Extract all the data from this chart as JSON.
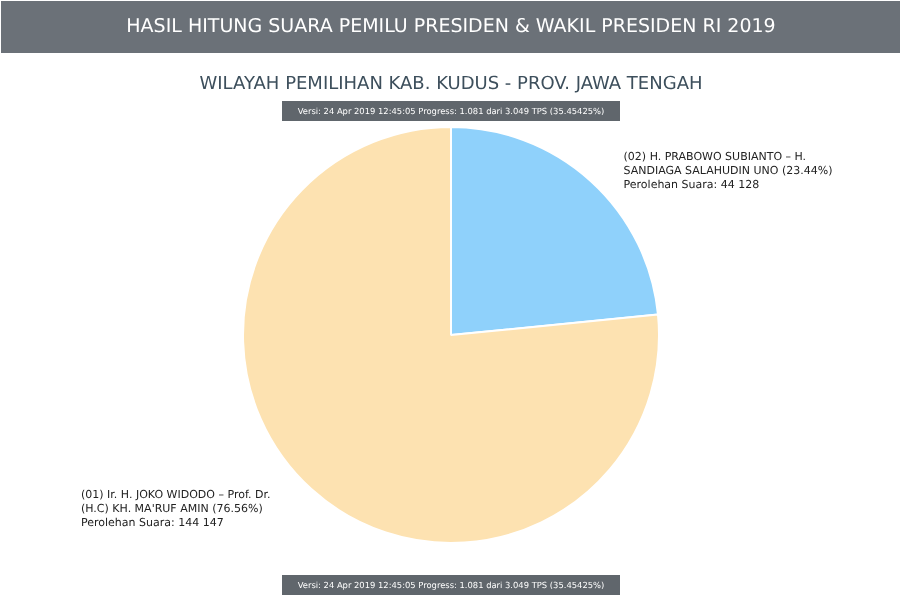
{
  "chart_data": {
    "type": "pie",
    "title": "HASIL HITUNG SUARA PEMILU PRESIDEN & WAKIL PRESIDEN RI 2019",
    "subtitle": "WILAYAH PEMILIHAN KAB. KUDUS - PROV. JAWA TENGAH",
    "categories": [
      "(02) H. PRABOWO SUBIANTO – H. SANDIAGA SALAHUDIN UNO",
      "(01) Ir. H. JOKO WIDODO – Prof. Dr. (H.C) KH. MA'RUF AMIN"
    ],
    "values": [
      44128,
      144147
    ],
    "colors": [
      "#8fd1fb",
      "#fde2b1"
    ],
    "value_labels": [
      "(23.44%)\nPerolehan Suara: 44 128",
      "(76.56%)\nPerolehan Suara: 144 147"
    ],
    "annotations": [
      "Versi: 24 Apr 2019 12:45:05 Progress: 1.081 dari 3.049 TPS (35.45425%)",
      "Versi: 24 Apr 2019 12:45:05 Progress: 1.081 dari 3.049 TPS (35.45425%)"
    ]
  }
}
